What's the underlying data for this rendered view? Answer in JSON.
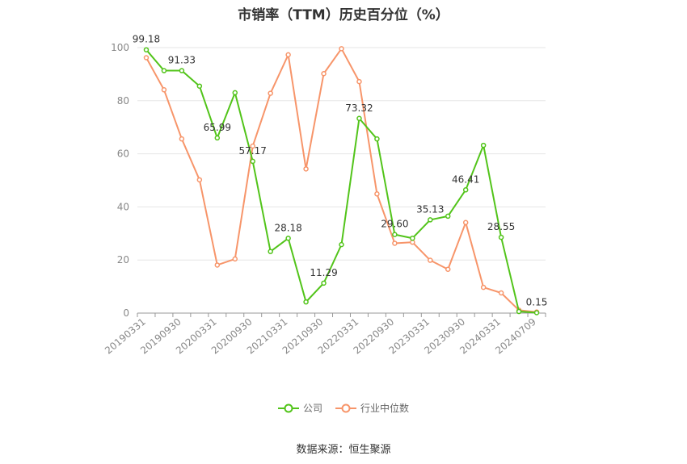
{
  "chart_data": {
    "type": "line",
    "title": "市销率（TTM）历史百分位（%）",
    "source": "数据来源：恒生聚源",
    "ylim": [
      0,
      100
    ],
    "yticks": [
      0,
      20,
      40,
      60,
      80,
      100
    ],
    "x": [
      "20190331",
      "20190630",
      "20190930",
      "20191231",
      "20200331",
      "20200630",
      "20200930",
      "20201231",
      "20210331",
      "20210630",
      "20210930",
      "20211231",
      "20220331",
      "20220630",
      "20220930",
      "20221231",
      "20230331",
      "20230630",
      "20230930",
      "20231231",
      "20240331",
      "20240630",
      "20240709"
    ],
    "xtick_labels": [
      "20190331",
      "20190930",
      "20200331",
      "20200930",
      "20210331",
      "20210930",
      "20220331",
      "20220930",
      "20230331",
      "20230930",
      "20240331",
      "20240709"
    ],
    "grid": true,
    "legend_position": "bottom",
    "series": [
      {
        "name": "公司",
        "color": "#52c41a",
        "values": [
          99.18,
          91.33,
          91.33,
          85.5,
          65.99,
          83.0,
          57.17,
          23.2,
          28.18,
          4.2,
          11.29,
          25.8,
          73.32,
          65.6,
          29.6,
          28.2,
          35.13,
          36.5,
          46.41,
          63.2,
          28.55,
          0.6,
          0.15
        ],
        "data_labels": {
          "0": "99.18",
          "2": "91.33",
          "4": "65.99",
          "6": "57.17",
          "8": "28.18",
          "10": "11.29",
          "12": "73.32",
          "14": "29.60",
          "16": "35.13",
          "18": "46.41",
          "20": "28.55",
          "22": "0.15"
        }
      },
      {
        "name": "行业中位数",
        "color": "#f7956a",
        "values": [
          96.2,
          84.1,
          65.6,
          50.2,
          18.1,
          20.4,
          62.9,
          82.8,
          97.3,
          54.3,
          90.2,
          99.6,
          87.2,
          44.9,
          26.3,
          26.7,
          19.9,
          16.5,
          34.1,
          9.7,
          7.6,
          1.1,
          0.4
        ]
      }
    ]
  }
}
